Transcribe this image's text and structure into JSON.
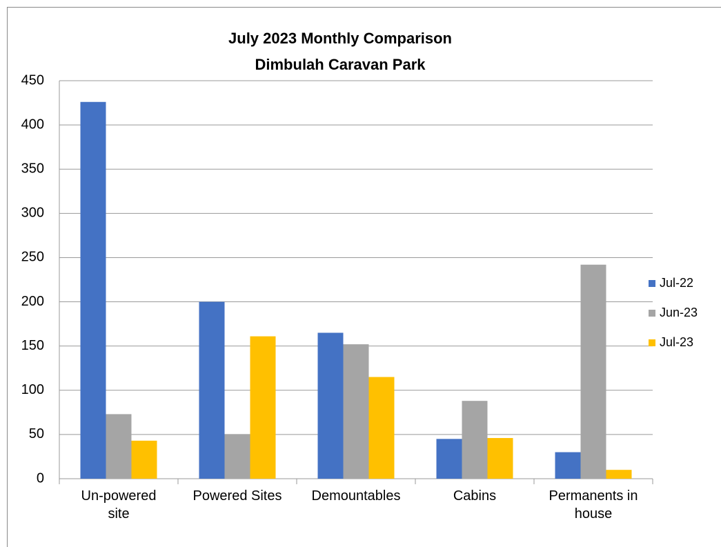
{
  "chart_data": {
    "type": "bar",
    "title": "July 2023 Monthly Comparison",
    "subtitle": "Dimbulah Caravan Park",
    "categories": [
      "Un-powered site",
      "Powered Sites",
      "Demountables",
      "Cabins",
      "Permanents in house"
    ],
    "series": [
      {
        "name": "Jul-22",
        "color": "#4472c4",
        "values": [
          426,
          200,
          165,
          45,
          30
        ]
      },
      {
        "name": "Jun-23",
        "color": "#a5a5a5",
        "values": [
          73,
          50,
          152,
          88,
          242
        ]
      },
      {
        "name": "Jul-23",
        "color": "#ffc000",
        "values": [
          43,
          161,
          115,
          46,
          10
        ]
      }
    ],
    "ylim": [
      0,
      450
    ],
    "yticks": [
      0,
      50,
      100,
      150,
      200,
      250,
      300,
      350,
      400,
      450
    ],
    "grid": true,
    "legend": "right"
  }
}
